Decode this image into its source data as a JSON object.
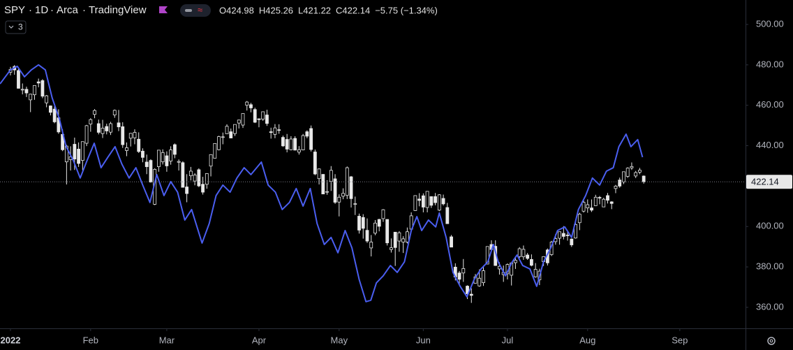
{
  "chart_data": {
    "type": "candlestick",
    "header": {
      "symbol": "SPY",
      "interval": "1D",
      "exchange": "Arca",
      "source": "TradingView",
      "legend": [
        "O424.98",
        "H425.26",
        "L421.22",
        "C422.14",
        "−5.75 (−1.34%)"
      ],
      "indicators": "3"
    },
    "candle_color": "#e8e8e8",
    "xlim": [
      -2.61,
      183.4
    ],
    "xticks": [
      {
        "value": 0,
        "label": "2022"
      },
      {
        "value": 20,
        "label": "Feb"
      },
      {
        "value": 39,
        "label": "Mar"
      },
      {
        "value": 62,
        "label": "Apr"
      },
      {
        "value": 82,
        "label": "May"
      },
      {
        "value": 103,
        "label": "Jun"
      },
      {
        "value": 124,
        "label": "Jul"
      },
      {
        "value": 144,
        "label": "Aug"
      },
      {
        "value": 167,
        "label": "Sep"
      }
    ],
    "ylim": [
      349.6,
      512.1
    ],
    "yticks": [
      {
        "value": 360,
        "label": "360.00"
      },
      {
        "value": 380,
        "label": "380.00"
      },
      {
        "value": 400,
        "label": "400.00"
      },
      {
        "value": 420,
        "label": "420.00"
      },
      {
        "value": 440,
        "label": "440.00"
      },
      {
        "value": 460,
        "label": "460.00"
      },
      {
        "value": 480,
        "label": "480.00"
      },
      {
        "value": 500,
        "label": "500.00"
      }
    ],
    "open": [
      476.3,
      479.2,
      477.2,
      467.9,
      467.9,
      462.7,
      465.2,
      471.6,
      472.2,
      461.2,
      459.7,
      458.1,
      453.8,
      445.6,
      432.0,
      433.1,
      440.7,
      438.3,
      432.7,
      441.2,
      450.7,
      455.5,
      450.9,
      446.0,
      449.5,
      446.7,
      455.2,
      451.3,
      449.4,
      437.6,
      443.7,
      443.9,
      443.2,
      437.3,
      431.9,
      432.7,
      411.0,
      429.6,
      432.0,
      435.0,
      432.4,
      440.5,
      431.8,
      431.6,
      419.6,
      425.1,
      422.5,
      428.1,
      420.9,
      420.9,
      429.9,
      433.8,
      438.0,
      444.3,
      445.9,
      446.9,
      446.0,
      451.2,
      450.2,
      460.0,
      460.3,
      457.9,
      453.3,
      453.1,
      455.2,
      446.9,
      445.6,
      447.9,
      444.1,
      443.1,
      438.0,
      443.6,
      436.8,
      437.9,
      446.9,
      448.5,
      436.9,
      423.7,
      425.8,
      417.2,
      422.3,
      423.6,
      412.1,
      415.0,
      415.4,
      424.6,
      411.1,
      405.1,
      404.5,
      398.1,
      389.4,
      396.7,
      403.5,
      403.9,
      403.5,
      388.6,
      397.2,
      392.8,
      392.3,
      392.3,
      398.7,
      407.9,
      413.6,
      415.2,
      409.4,
      414.8,
      414.8,
      408.1,
      413.9,
      409.4,
      394.9,
      379.9,
      377.0,
      377.0,
      370.5,
      366.5,
      371.9,
      370.6,
      372.2,
      381.4,
      391.1,
      390.2,
      379.0,
      376.2,
      376.6,
      375.9,
      382.1,
      385.1,
      385.0,
      385.9,
      383.7,
      375.1,
      373.6,
      382.6,
      388.4,
      386.1,
      392.5,
      394.2,
      396.6,
      395.8,
      393.8,
      394.3,
      401.9,
      407.6,
      409.2,
      409.2,
      410.3,
      414.4,
      409.7,
      415.3,
      412.2,
      418.8,
      422.99,
      422.0,
      424.8,
      429.0,
      425.0,
      426.9,
      424.98
    ],
    "high": [
      479.0,
      479.9,
      477.9,
      470.8,
      469.2,
      465.7,
      469.9,
      473.2,
      472.9,
      465.1,
      459.9,
      459.6,
      458.0,
      448.1,
      440.4,
      439.7,
      444.0,
      441.6,
      442.0,
      450.3,
      453.6,
      458.1,
      452.9,
      452.8,
      450.9,
      451.8,
      457.9,
      457.7,
      451.6,
      441.6,
      446.3,
      448.1,
      446.6,
      438.7,
      435.6,
      433.3,
      428.8,
      437.8,
      438.2,
      437.2,
      439.7,
      441.1,
      433.2,
      432.3,
      425.9,
      429.5,
      426.4,
      428.8,
      424.6,
      426.4,
      435.7,
      441.1,
      444.9,
      446.5,
      450.6,
      448.5,
      450.5,
      452.9,
      455.9,
      462.1,
      461.2,
      458.8,
      453.5,
      456.9,
      457.8,
      448.9,
      450.7,
      450.6,
      445.0,
      445.8,
      444.7,
      444.7,
      439.8,
      445.8,
      447.6,
      450.0,
      438.1,
      428.7,
      426.0,
      422.9,
      429.9,
      425.9,
      415.9,
      418.9,
      429.7,
      425.0,
      414.8,
      406.4,
      406.1,
      404.0,
      395.8,
      403.2,
      403.8,
      408.6,
      403.6,
      394.1,
      397.3,
      397.7,
      395.2,
      399.5,
      407.0,
      415.4,
      416.5,
      416.4,
      417.4,
      414.9,
      416.6,
      416.0,
      415.8,
      411.7,
      395.8,
      381.8,
      378.0,
      383.9,
      370.9,
      369.4,
      376.5,
      378.8,
      380.7,
      390.1,
      393.2,
      393.2,
      382.3,
      380.7,
      381.7,
      382.1,
      385.2,
      389.8,
      390.6,
      386.9,
      386.2,
      381.9,
      379.1,
      385.3,
      389.1,
      392.9,
      396.3,
      397.5,
      400.2,
      397.6,
      394.1,
      402.9,
      406.8,
      413.0,
      413.4,
      413.4,
      415.7,
      415.1,
      414.2,
      416.6,
      412.5,
      420.6,
      424.2,
      427.2,
      429.3,
      431.7,
      427.5,
      429.0,
      425.26
    ],
    "low": [
      474.8,
      475.1,
      468.3,
      465.4,
      464.1,
      456.6,
      462.7,
      468.9,
      463.5,
      459.0,
      455.0,
      451.1,
      445.9,
      437.3,
      420.8,
      427.7,
      428.0,
      429.5,
      427.8,
      439.8,
      446.9,
      453.6,
      445.6,
      443.8,
      445.6,
      445.3,
      453.8,
      447.2,
      438.9,
      434.8,
      439.6,
      440.7,
      436.4,
      431.8,
      425.9,
      421.7,
      410.6,
      427.1,
      430.7,
      427.1,
      430.6,
      433.8,
      427.7,
      419.4,
      412.0,
      422.8,
      420.4,
      419.5,
      415.8,
      418.7,
      424.8,
      433.8,
      437.7,
      440.7,
      445.9,
      443.7,
      444.8,
      448.5,
      448.8,
      457.4,
      456.5,
      451.2,
      449.1,
      452.3,
      449.8,
      443.5,
      443.7,
      445.9,
      439.4,
      436.7,
      437.7,
      437.7,
      435.6,
      437.7,
      443.7,
      437.1,
      425.4,
      420.8,
      416.0,
      415.7,
      417.6,
      411.2,
      405.0,
      413.5,
      413.6,
      409.4,
      405.7,
      396.5,
      394.0,
      391.9,
      385.2,
      395.7,
      397.6,
      402.3,
      390.6,
      387.1,
      380.5,
      387.5,
      386.9,
      391.6,
      398.5,
      407.7,
      410.0,
      407.0,
      407.0,
      409.2,
      410.5,
      407.6,
      410.4,
      401.4,
      389.8,
      373.3,
      371.0,
      372.6,
      364.1,
      362.2,
      371.8,
      370.2,
      370.6,
      381.4,
      387.9,
      380.5,
      376.2,
      372.6,
      373.8,
      370.8,
      379.0,
      384.4,
      383.5,
      383.5,
      380.3,
      374.7,
      371.0,
      380.5,
      380.7,
      385.4,
      391.0,
      391.0,
      393.6,
      393.0,
      389.9,
      394.0,
      398.2,
      406.9,
      406.8,
      407.2,
      410.2,
      411.0,
      409.6,
      411.4,
      408.6,
      416.5,
      419.2,
      421.0,
      424.1,
      428.0,
      424.0,
      425.9,
      421.22
    ],
    "close": [
      477.7,
      477.5,
      468.4,
      467.9,
      466.1,
      465.5,
      469.8,
      471.0,
      464.5,
      464.7,
      456.5,
      451.8,
      446.8,
      438.0,
      439.8,
      434.5,
      433.4,
      431.2,
      442.0,
      449.9,
      452.9,
      457.4,
      446.6,
      448.7,
      447.3,
      450.9,
      457.5,
      449.3,
      440.5,
      439.0,
      446.1,
      446.6,
      437.1,
      434.2,
      429.6,
      422.0,
      428.3,
      437.8,
      436.6,
      430.0,
      437.9,
      435.7,
      432.2,
      419.4,
      416.3,
      427.4,
      425.5,
      420.1,
      417.0,
      426.2,
      435.6,
      441.1,
      444.5,
      444.4,
      449.6,
      443.8,
      450.5,
      452.7,
      455.9,
      461.6,
      458.7,
      451.6,
      452.9,
      456.8,
      451.0,
      446.5,
      448.8,
      447.6,
      439.9,
      438.3,
      443.3,
      437.8,
      438.0,
      445.0,
      444.7,
      438.1,
      426.0,
      428.5,
      416.1,
      417.3,
      427.8,
      412.0,
      414.5,
      416.4,
      429.1,
      413.8,
      411.3,
      398.2,
      399.1,
      392.8,
      392.3,
      401.7,
      400.1,
      408.3,
      391.9,
      389.5,
      389.6,
      396.9,
      393.9,
      397.4,
      405.3,
      415.3,
      412.9,
      409.6,
      417.4,
      410.5,
      411.8,
      415.7,
      411.2,
      401.4,
      389.8,
      375.0,
      373.9,
      379.2,
      366.7,
      365.9,
      375.1,
      374.4,
      378.1,
      390.1,
      388.6,
      380.7,
      380.3,
      377.3,
      381.2,
      382.0,
      383.3,
      389.0,
      388.7,
      384.2,
      380.8,
      378.8,
      377.9,
      385.1,
      382.0,
      392.3,
      394.0,
      397.4,
      395.1,
      395.6,
      390.9,
      401.0,
      406.1,
      412.0,
      410.8,
      408.1,
      414.5,
      414.2,
      413.5,
      413.0,
      411.4,
      420.0,
      420.0,
      427.1,
      428.9,
      429.7,
      426.7,
      427.9,
      422.14
    ],
    "series": [
      {
        "color": "#4a5ef0",
        "x": [
          -2.6,
          0,
          1.7,
          3.5,
          5.2,
          7.0,
          8.7,
          10.4,
          12.2,
          13.9,
          15.7,
          17.4,
          19.1,
          20.9,
          22.6,
          24.3,
          26.1,
          27.8,
          29.6,
          31.3,
          33.0,
          34.8,
          36.5,
          38.3,
          40.0,
          41.7,
          43.5,
          45.2,
          47.8,
          49.6,
          51.3,
          53.0,
          54.8,
          56.5,
          58.3,
          60.0,
          62.6,
          64.3,
          66.1,
          67.8,
          69.6,
          71.3,
          73.0,
          74.8,
          76.5,
          78.3,
          80.0,
          81.7,
          83.5,
          85.2,
          87.0,
          88.7,
          89.9,
          91.3,
          93.0,
          94.8,
          96.5,
          98.3,
          100.0,
          101.4,
          102.6,
          104.3,
          106.1,
          107.0,
          108.7,
          110.4,
          112.2,
          113.9,
          115.7,
          117.4,
          119.1,
          120.5,
          121.7,
          123.5,
          125.2,
          126.4,
          127.8,
          129.6,
          131.3,
          133.0,
          134.8,
          136.5,
          138.3,
          140.0,
          141.7,
          143.5,
          145.2,
          147.0,
          148.7,
          150.4,
          151.8,
          153.6,
          154.8,
          156.5,
          157.7
        ],
        "values": [
          470.6,
          477.5,
          479.3,
          474.1,
          477.5,
          480.0,
          477.5,
          463.7,
          453.3,
          439.5,
          432.6,
          424.0,
          432.6,
          441.2,
          429.1,
          434.3,
          439.5,
          430.9,
          424.0,
          429.1,
          420.5,
          411.9,
          425.7,
          415.3,
          422.2,
          417.0,
          403.2,
          408.4,
          391.8,
          401.5,
          415.3,
          420.5,
          417.0,
          424.0,
          429.1,
          425.7,
          431.9,
          420.5,
          417.0,
          408.4,
          411.9,
          418.8,
          410.1,
          418.8,
          401.5,
          391.1,
          394.6,
          387.0,
          398.0,
          389.4,
          373.8,
          362.8,
          363.5,
          372.1,
          375.6,
          380.7,
          377.3,
          382.5,
          398.0,
          404.9,
          398.0,
          403.2,
          399.8,
          406.7,
          394.6,
          377.3,
          370.4,
          365.2,
          373.8,
          379.0,
          382.5,
          391.1,
          382.5,
          375.6,
          382.5,
          385.9,
          380.7,
          379.0,
          370.4,
          382.5,
          389.4,
          398.0,
          399.8,
          394.6,
          408.4,
          415.3,
          424.0,
          420.5,
          427.4,
          429.1,
          439.5,
          445.7,
          439.5,
          443.0,
          434.3
        ]
      }
    ]
  }
}
